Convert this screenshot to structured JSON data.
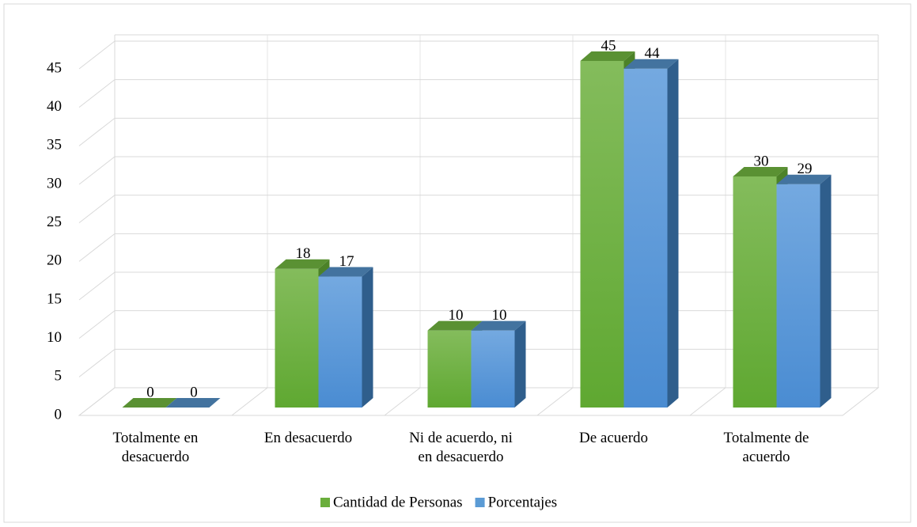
{
  "chart_data": {
    "type": "bar3d",
    "categories": [
      "Totalmente en desacuerdo",
      "En desacuerdo",
      "Ni de acuerdo, ni en desacuerdo",
      "De acuerdo",
      "Totalmente de acuerdo"
    ],
    "series": [
      {
        "name": "Cantidad de Personas",
        "color": "#6aae3c",
        "values": [
          0,
          18,
          10,
          45,
          30
        ]
      },
      {
        "name": "Porcentajes",
        "color": "#5b9bd5",
        "values": [
          0,
          17,
          10,
          44,
          29
        ]
      }
    ],
    "ylim": [
      0,
      45
    ],
    "yticks": [
      0,
      5,
      10,
      15,
      20,
      25,
      30,
      35,
      40,
      45
    ],
    "grid": true,
    "legend": "bottom"
  }
}
